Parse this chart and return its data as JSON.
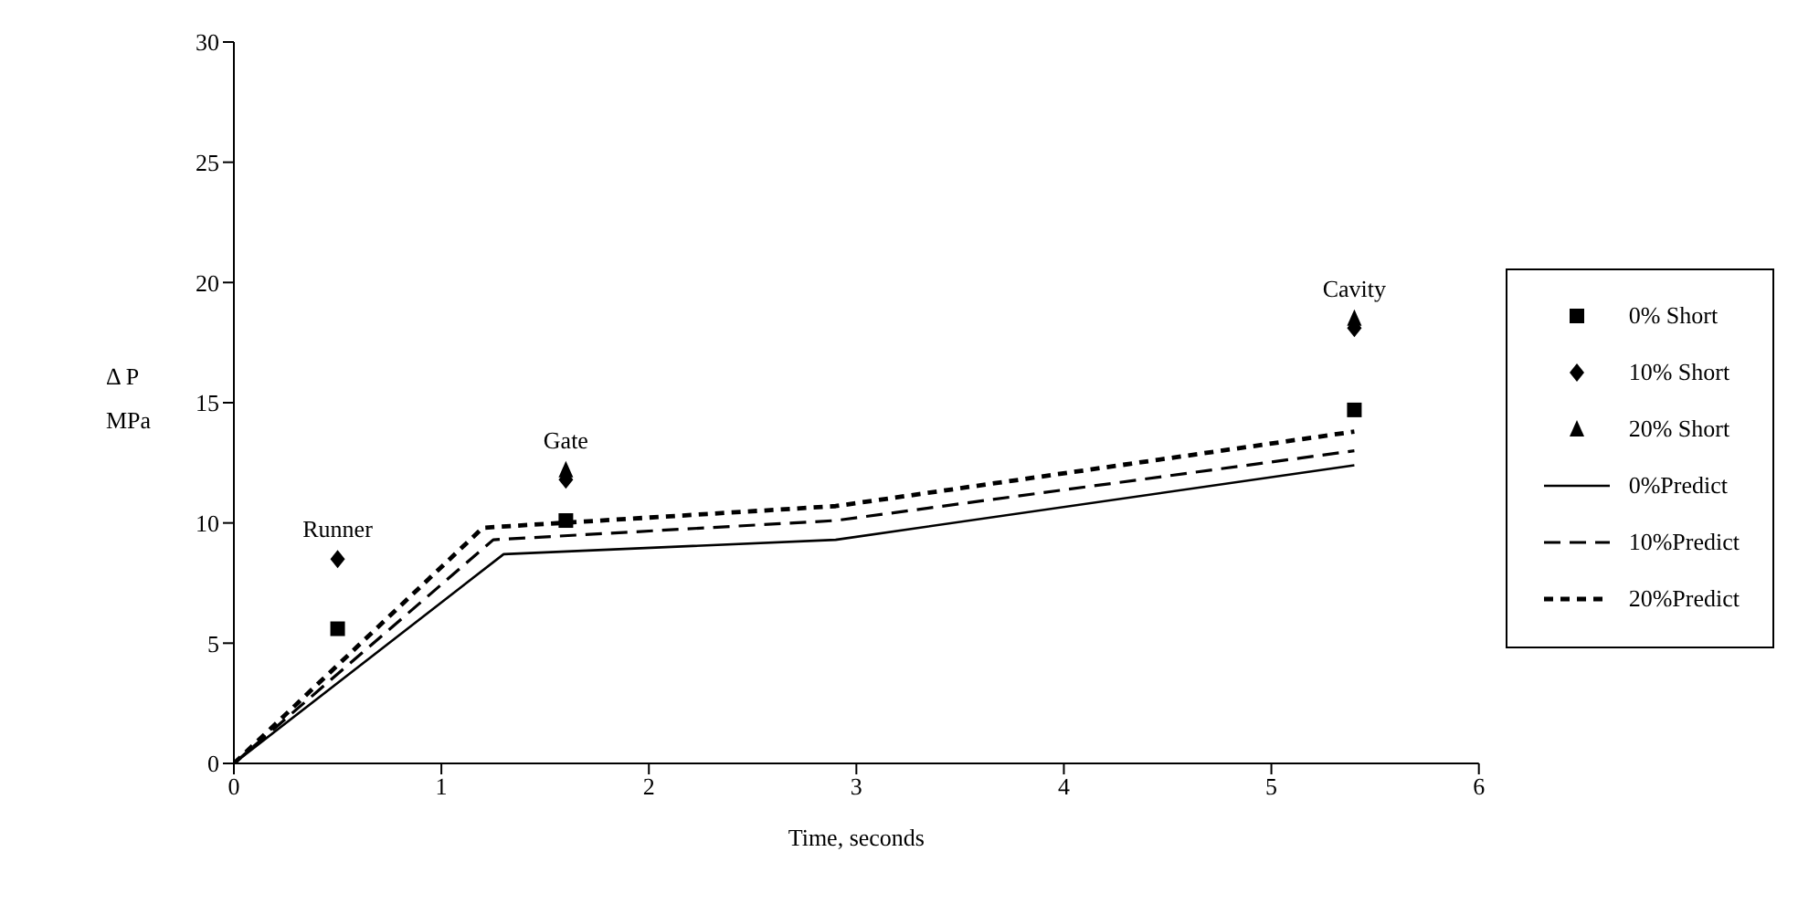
{
  "chart_data": {
    "type": "scatter",
    "xlabel": "Time, seconds",
    "ylabel": "Δ P\nMPa",
    "xlim": [
      0,
      6
    ],
    "xticks": [
      0,
      1,
      2,
      3,
      4,
      5,
      6
    ],
    "ylim": [
      0,
      30
    ],
    "yticks": [
      0,
      5,
      10,
      15,
      20,
      25,
      30
    ],
    "grid": false,
    "legend": "right",
    "series": [
      {
        "name": "0% Short",
        "marker": "square",
        "color": "#000000",
        "x": [
          0.5,
          1.6,
          5.4
        ],
        "values": [
          5.6,
          10.1,
          14.7
        ]
      },
      {
        "name": "10% Short",
        "marker": "diamond",
        "color": "#000000",
        "x": [
          0.5,
          1.6,
          5.4
        ],
        "values": [
          8.5,
          11.8,
          18.1
        ]
      },
      {
        "name": "20% Short",
        "marker": "triangle",
        "color": "#000000",
        "x": [
          1.6,
          5.4
        ],
        "values": [
          12.2,
          18.5
        ]
      },
      {
        "name": "0%Predict",
        "type": "line",
        "line_style": "solid",
        "color": "#000000",
        "x": [
          0,
          1.3,
          2.9,
          5.4
        ],
        "values": [
          0,
          8.7,
          9.3,
          12.4
        ]
      },
      {
        "name": "10%Predict",
        "type": "line",
        "line_style": "dashed",
        "color": "#000000",
        "x": [
          0,
          1.25,
          2.9,
          5.4
        ],
        "values": [
          0,
          9.3,
          10.1,
          13.0
        ]
      },
      {
        "name": "20%Predict",
        "type": "line",
        "line_style": "dotted",
        "color": "#000000",
        "x": [
          0,
          1.2,
          2.9,
          5.4
        ],
        "values": [
          0,
          9.8,
          10.7,
          13.8
        ]
      }
    ],
    "annotations": [
      {
        "text": "Runner",
        "x": 0.5,
        "y": 8.5
      },
      {
        "text": "Gate",
        "x": 1.6,
        "y": 12.2
      },
      {
        "text": "Cavity",
        "x": 5.4,
        "y": 18.5
      }
    ]
  }
}
